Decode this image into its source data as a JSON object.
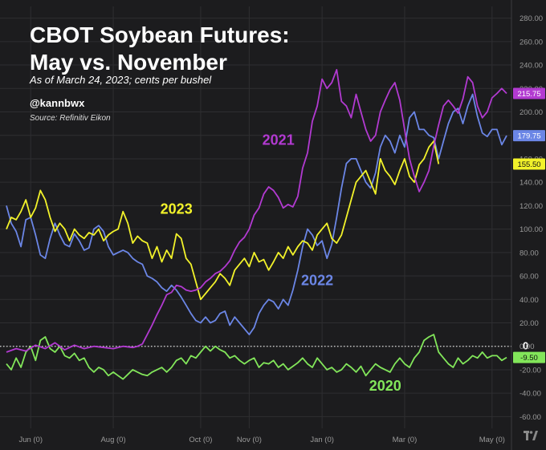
{
  "header": {
    "title_line1": "CBOT Soybean Futures:",
    "title_line2": "May vs. November",
    "subtitle": "As of March 24, 2023; cents per bushel",
    "handle": "@kannbwx",
    "source": "Source: Refinitiv Eikon"
  },
  "colors": {
    "background": "#1c1c1e",
    "grid": "#2e2e31",
    "axis_text": "#9a9a9a",
    "s2021": "#b23ad1",
    "s2022": "#6b86e6",
    "s2023": "#f2f22a",
    "s2020": "#82e65a",
    "zero_line": "#dddddd"
  },
  "chart_data": {
    "type": "line",
    "x_ticks": [
      "Jun (0)",
      "Aug (0)",
      "Oct (0)",
      "Nov (0)",
      "Jan (0)",
      "Mar (0)",
      "May (0)"
    ],
    "xlim": [
      0,
      100
    ],
    "x_tick_positions": [
      5,
      22,
      40,
      50,
      65,
      82,
      100
    ],
    "ylim": [
      -70,
      290
    ],
    "y_ticks": [
      "280.00",
      "260.00",
      "240.00",
      "220.00",
      "200.00",
      "180.00",
      "160.00",
      "140.00",
      "120.00",
      "100.00",
      "80.00",
      "60.00",
      "40.00",
      "20.00",
      "0.00",
      "-20.00",
      "-40.00",
      "-60.00"
    ],
    "y_tick_values": [
      280,
      260,
      240,
      220,
      200,
      180,
      160,
      140,
      120,
      100,
      80,
      60,
      40,
      20,
      0,
      -20,
      -40,
      -60
    ],
    "zero_label": "0",
    "series": [
      {
        "name": "2021",
        "color": "#b23ad1",
        "last_value_label": "215.75",
        "last_value": 215.75,
        "label_pos": {
          "x": 56,
          "y": 172
        },
        "x": [
          0,
          2,
          4,
          6,
          8,
          10,
          12,
          14,
          16,
          18,
          20,
          22,
          24,
          26,
          27,
          28,
          29,
          30,
          31,
          32,
          33,
          34,
          35,
          36,
          37,
          38,
          39,
          40,
          41,
          42,
          43,
          44,
          45,
          46,
          47,
          48,
          49,
          50,
          51,
          52,
          53,
          54,
          55,
          56,
          57,
          58,
          59,
          60,
          61,
          62,
          63,
          64,
          65,
          66,
          67,
          68,
          69,
          70,
          71,
          72,
          73,
          74,
          75,
          76,
          77,
          78,
          79,
          80,
          81,
          82,
          83,
          84,
          85,
          86,
          87,
          88,
          89,
          90,
          91,
          92,
          93,
          94,
          95,
          96,
          97,
          98,
          99,
          100,
          101,
          102,
          103
        ],
        "y": [
          -5,
          -2,
          -4,
          1,
          -2,
          3,
          -3,
          1,
          -2,
          0,
          -1,
          -2,
          0,
          -1,
          0,
          2,
          10,
          18,
          27,
          35,
          44,
          46,
          52,
          51,
          48,
          47,
          48,
          50,
          55,
          58,
          62,
          64,
          68,
          73,
          82,
          89,
          93,
          100,
          112,
          118,
          130,
          136,
          133,
          127,
          118,
          121,
          119,
          128,
          152,
          165,
          192,
          205,
          228,
          220,
          225,
          236,
          209,
          205,
          195,
          215,
          200,
          185,
          175,
          180,
          200,
          210,
          219,
          225,
          210,
          185,
          160,
          145,
          132,
          140,
          150,
          171,
          189,
          205,
          210,
          205,
          199,
          211,
          230,
          225,
          205,
          195,
          200,
          212,
          215.75,
          220,
          215.75
        ]
      },
      {
        "name": "2022",
        "color": "#6b86e6",
        "last_value_label": "179.75",
        "last_value": 179.75,
        "label_pos": {
          "x": 64,
          "y": 52
        },
        "x": [
          0,
          1,
          2,
          3,
          4,
          5,
          6,
          7,
          8,
          9,
          10,
          11,
          12,
          13,
          14,
          15,
          16,
          17,
          18,
          19,
          20,
          21,
          22,
          23,
          24,
          25,
          26,
          27,
          28,
          29,
          30,
          31,
          32,
          33,
          34,
          35,
          36,
          37,
          38,
          39,
          40,
          41,
          42,
          43,
          44,
          45,
          46,
          47,
          48,
          49,
          50,
          51,
          52,
          53,
          54,
          55,
          56,
          57,
          58,
          59,
          60,
          61,
          62,
          63,
          64,
          65,
          66,
          67,
          68,
          69,
          70,
          71,
          72,
          73,
          74,
          75,
          76,
          77,
          78,
          79,
          80,
          81,
          82,
          83,
          84,
          85,
          86,
          87,
          88,
          89,
          90,
          91,
          92,
          93,
          94,
          95,
          96,
          97,
          98,
          99,
          100,
          101,
          102,
          103
        ],
        "y": [
          120,
          105,
          98,
          85,
          108,
          110,
          95,
          78,
          75,
          92,
          105,
          95,
          87,
          85,
          96,
          90,
          82,
          84,
          100,
          103,
          98,
          85,
          78,
          80,
          82,
          80,
          75,
          72,
          70,
          60,
          58,
          55,
          50,
          47,
          52,
          48,
          42,
          35,
          28,
          22,
          20,
          25,
          20,
          22,
          28,
          30,
          18,
          25,
          20,
          15,
          10,
          16,
          28,
          35,
          40,
          38,
          32,
          40,
          35,
          48,
          65,
          85,
          100,
          95,
          86,
          90,
          75,
          87,
          110,
          135,
          156,
          160,
          160,
          150,
          140,
          135,
          148,
          170,
          180,
          175,
          165,
          180,
          170,
          195,
          200,
          185,
          185,
          180,
          178,
          160,
          175,
          190,
          200,
          203,
          190,
          205,
          215,
          196,
          182,
          179,
          185,
          185,
          172,
          179.75
        ]
      },
      {
        "name": "2023",
        "color": "#f2f22a",
        "last_value_label": "155.50",
        "last_value": 155.5,
        "label_pos": {
          "x": 35,
          "y": 113
        },
        "x": [
          0,
          1,
          2,
          3,
          4,
          5,
          6,
          7,
          8,
          9,
          10,
          11,
          12,
          13,
          14,
          15,
          16,
          17,
          18,
          19,
          20,
          21,
          22,
          23,
          24,
          25,
          26,
          27,
          28,
          29,
          30,
          31,
          32,
          33,
          34,
          35,
          36,
          37,
          38,
          39,
          40,
          41,
          42,
          43,
          44,
          45,
          46,
          47,
          48,
          49,
          50,
          51,
          52,
          53,
          54,
          55,
          56,
          57,
          58,
          59,
          60,
          61,
          62,
          63,
          64,
          65,
          66,
          67,
          68,
          69,
          70,
          71,
          72,
          73,
          74,
          75,
          76,
          77,
          78,
          79,
          80,
          81,
          82,
          83,
          84,
          85,
          86,
          87,
          88,
          89
        ],
        "y": [
          100,
          110,
          108,
          115,
          125,
          110,
          118,
          133,
          125,
          110,
          98,
          105,
          100,
          90,
          100,
          95,
          92,
          97,
          95,
          100,
          90,
          95,
          98,
          100,
          115,
          105,
          88,
          94,
          90,
          88,
          75,
          85,
          72,
          82,
          75,
          96,
          92,
          75,
          70,
          55,
          40,
          45,
          50,
          55,
          62,
          58,
          52,
          65,
          70,
          75,
          68,
          80,
          72,
          74,
          65,
          72,
          80,
          75,
          85,
          78,
          85,
          90,
          88,
          82,
          95,
          100,
          105,
          92,
          88,
          95,
          110,
          125,
          140,
          145,
          150,
          140,
          130,
          160,
          150,
          145,
          138,
          150,
          160,
          145,
          140,
          155,
          160,
          170,
          175,
          155.5
        ]
      },
      {
        "name": "2020",
        "color": "#82e65a",
        "last_value_label": "-9.50",
        "last_value": -9.5,
        "label_pos": {
          "x": 78,
          "y": -38
        },
        "x": [
          0,
          1,
          2,
          3,
          4,
          5,
          6,
          7,
          8,
          9,
          10,
          11,
          12,
          13,
          14,
          15,
          16,
          17,
          18,
          19,
          20,
          21,
          22,
          23,
          24,
          25,
          26,
          27,
          28,
          29,
          30,
          31,
          32,
          33,
          34,
          35,
          36,
          37,
          38,
          39,
          40,
          41,
          42,
          43,
          44,
          45,
          46,
          47,
          48,
          49,
          50,
          51,
          52,
          53,
          54,
          55,
          56,
          57,
          58,
          59,
          60,
          61,
          62,
          63,
          64,
          65,
          66,
          67,
          68,
          69,
          70,
          71,
          72,
          73,
          74,
          75,
          76,
          77,
          78,
          79,
          80,
          81,
          82,
          83,
          84,
          85,
          86,
          87,
          88,
          89,
          90,
          91,
          92,
          93,
          94,
          95,
          96,
          97,
          98,
          99,
          100,
          101,
          102,
          103
        ],
        "y": [
          -15,
          -20,
          -10,
          -18,
          -5,
          0,
          -12,
          5,
          8,
          -2,
          -5,
          0,
          -8,
          -10,
          -6,
          -12,
          -10,
          -18,
          -22,
          -18,
          -20,
          -25,
          -22,
          -25,
          -28,
          -24,
          -20,
          -22,
          -24,
          -25,
          -22,
          -20,
          -18,
          -22,
          -18,
          -12,
          -10,
          -15,
          -8,
          -10,
          -5,
          0,
          -4,
          0,
          -3,
          -5,
          -10,
          -8,
          -12,
          -15,
          -12,
          -10,
          -18,
          -14,
          -15,
          -12,
          -18,
          -15,
          -20,
          -17,
          -14,
          -10,
          -15,
          -18,
          -10,
          -15,
          -20,
          -18,
          -22,
          -20,
          -15,
          -18,
          -22,
          -17,
          -25,
          -20,
          -15,
          -18,
          -20,
          -22,
          -15,
          -10,
          -15,
          -18,
          -10,
          -5,
          5,
          8,
          10,
          -5,
          -10,
          -15,
          -18,
          -10,
          -15,
          -12,
          -8,
          -10,
          -5,
          -10,
          -8,
          -8,
          -12,
          -9.5
        ]
      }
    ]
  }
}
